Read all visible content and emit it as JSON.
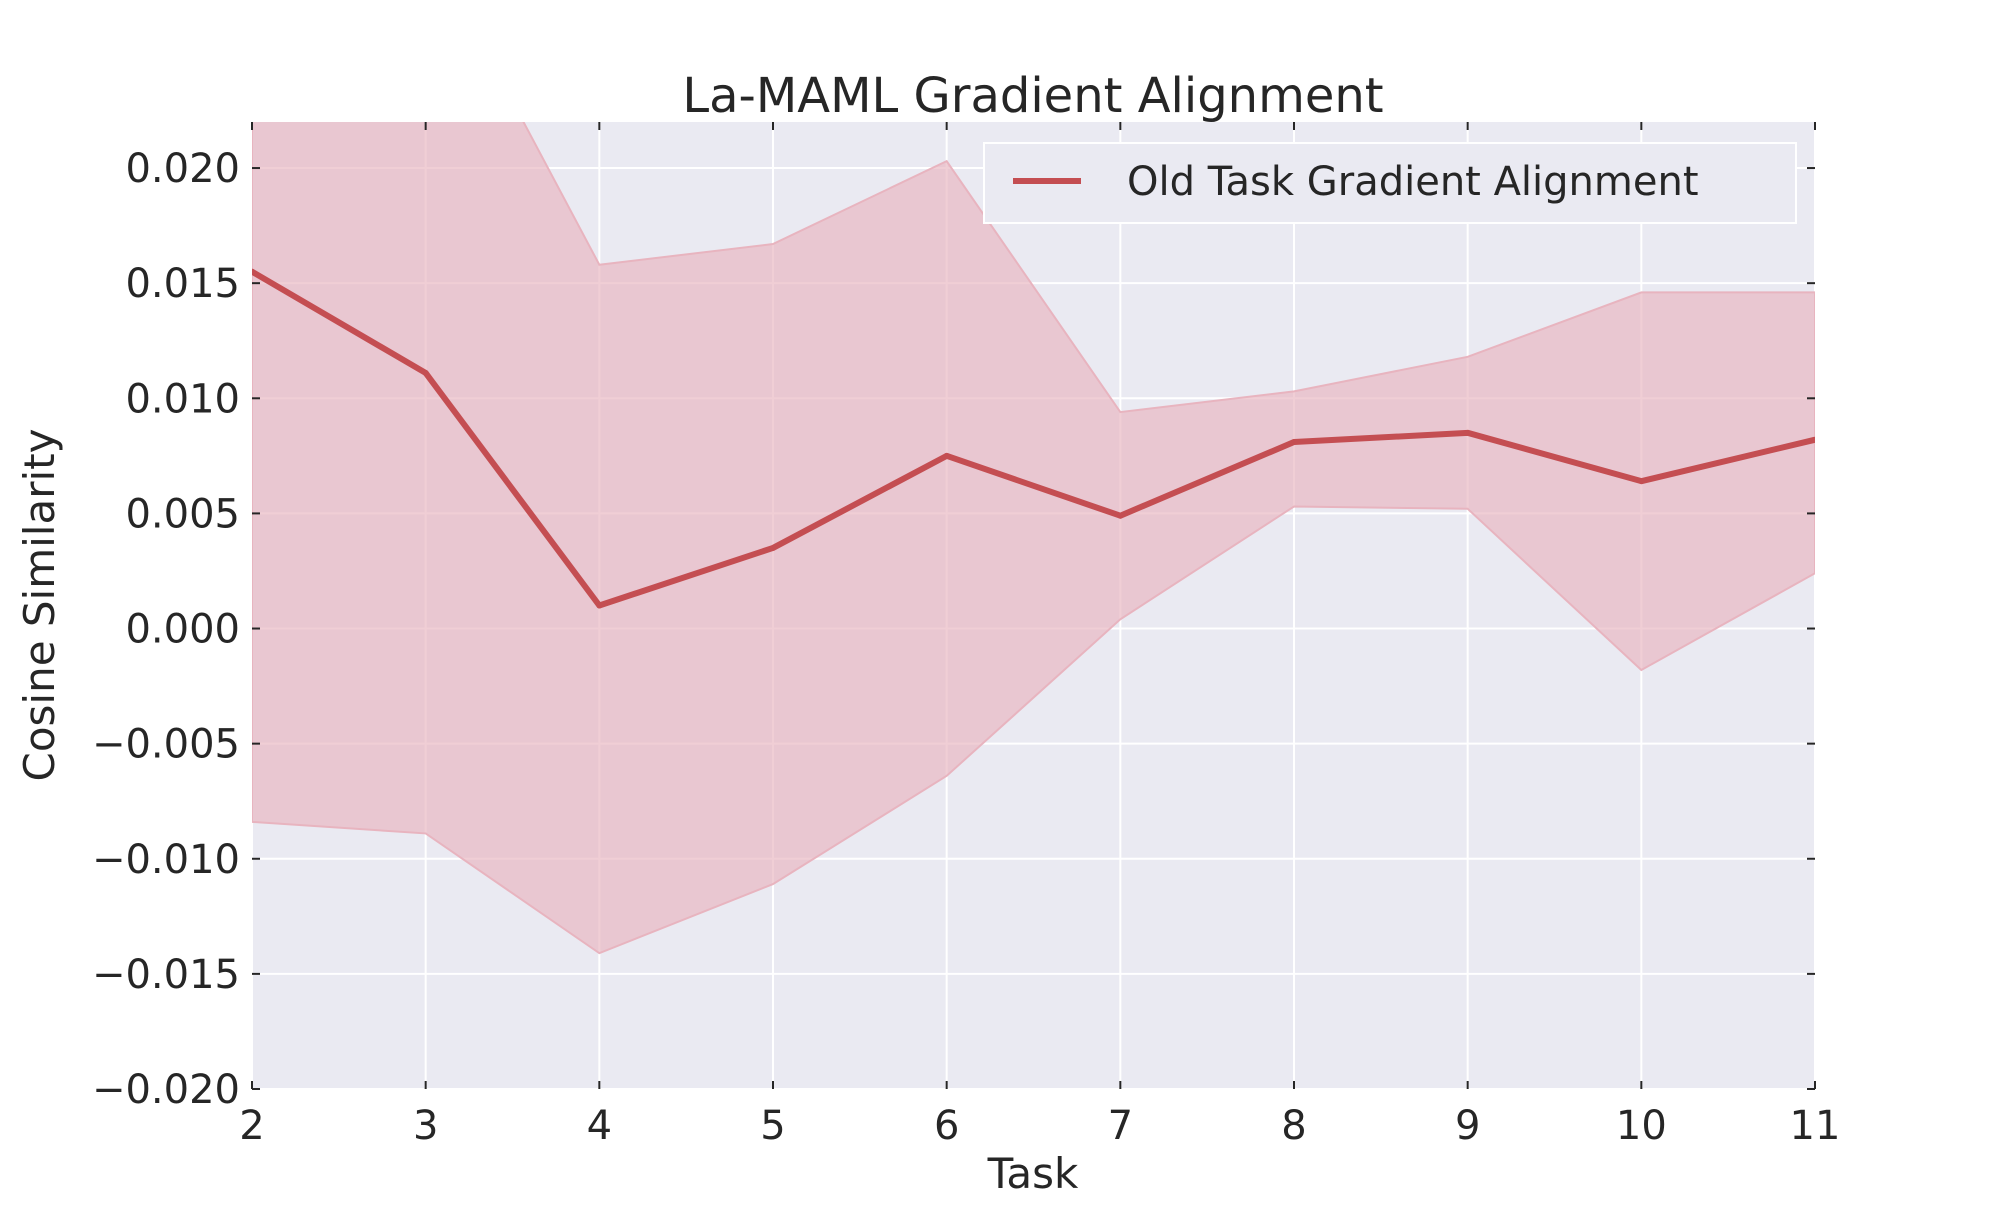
{
  "chart_data": {
    "type": "line",
    "title": "La-MAML Gradient Alignment",
    "xlabel": "Task",
    "ylabel": "Cosine Similarity",
    "xlim": [
      2,
      11
    ],
    "ylim": [
      -0.02,
      0.022
    ],
    "x": [
      2,
      3,
      4,
      5,
      6,
      7,
      8,
      9,
      10,
      11
    ],
    "xticks": [
      "2",
      "3",
      "4",
      "5",
      "6",
      "7",
      "8",
      "9",
      "10",
      "11"
    ],
    "yticks": [
      -0.02,
      -0.015,
      -0.01,
      -0.005,
      0.0,
      0.005,
      0.01,
      0.015,
      0.02
    ],
    "ytick_labels": [
      "−0.020",
      "−0.015",
      "−0.010",
      "−0.005",
      "0.000",
      "0.005",
      "0.010",
      "0.015",
      "0.020"
    ],
    "grid": true,
    "legend_position": "top-right",
    "colors": {
      "line": "#c44e52",
      "band": "#e8b4bf",
      "plot_bg": "#eaeaf2",
      "grid": "#ffffff"
    },
    "series": [
      {
        "name": "Old Task Gradient Alignment",
        "values": [
          0.0155,
          0.0111,
          0.001,
          0.0035,
          0.0075,
          0.0049,
          0.0081,
          0.0085,
          0.0064,
          0.0082
        ],
        "upper": [
          0.027,
          0.03,
          0.0158,
          0.0167,
          0.0203,
          0.0094,
          0.0103,
          0.0118,
          0.0146,
          0.0146
        ],
        "lower": [
          -0.0084,
          -0.0089,
          -0.0141,
          -0.0111,
          -0.0064,
          0.0004,
          0.0053,
          0.0052,
          -0.0018,
          0.0024
        ]
      }
    ]
  }
}
